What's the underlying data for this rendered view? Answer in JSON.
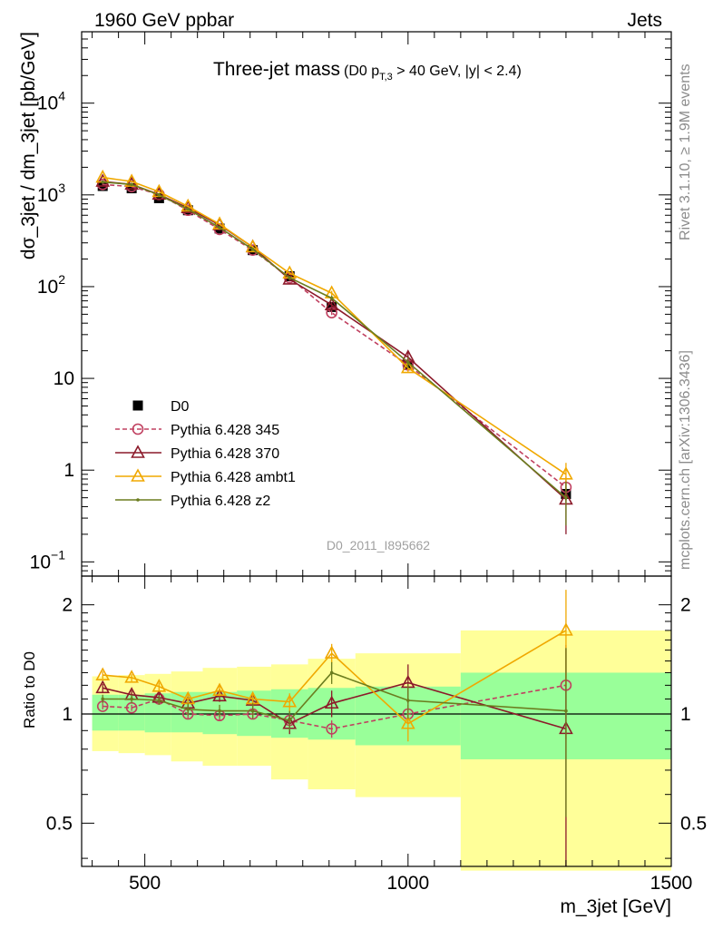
{
  "header": {
    "left": "1960 GeV ppbar",
    "right": "Jets"
  },
  "side_labels": {
    "rivet": "Rivet 3.1.10, ≥ 1.9M events",
    "mcplots": "mcplots.cern.ch [arXiv:1306.3436]"
  },
  "chart_data": [
    {
      "type": "line",
      "title": "Three-jet mass",
      "title_note": {
        "prefix": "(D0 p",
        "subscript": "T,3",
        "suffix": " > 40 GeV, |y| < 2.4)"
      },
      "analysis_id": "D0_2011_I895662",
      "ylabel": "dσ_3jet / dm_3jet [pb/GeV]",
      "yscale": "log",
      "ylim": [
        0.07,
        60000
      ],
      "xlim": [
        380,
        1500
      ],
      "y_ticks": [
        {
          "v": 0.1,
          "label": "10",
          "sup": "−1"
        },
        {
          "v": 1,
          "label": "1",
          "sup": ""
        },
        {
          "v": 10,
          "label": "10",
          "sup": ""
        },
        {
          "v": 100,
          "label": "10",
          "sup": "2"
        },
        {
          "v": 1000,
          "label": "10",
          "sup": "3"
        },
        {
          "v": 10000,
          "label": "10",
          "sup": "4"
        }
      ],
      "x": [
        420,
        475,
        527,
        582,
        642,
        705,
        775,
        855,
        1000,
        1300
      ],
      "series": [
        {
          "name": "D0",
          "color": "#000000",
          "marker": "square",
          "values": [
            1250,
            1180,
            920,
            680,
            430,
            250,
            130,
            60,
            14,
            0.55
          ],
          "err": [
            60,
            55,
            45,
            35,
            22,
            14,
            8,
            4,
            1.5,
            0.08
          ]
        },
        {
          "name": "Pythia 6.428 345",
          "color": "#c04060",
          "marker": "circle",
          "dash": true,
          "values": [
            1300,
            1230,
            1010,
            680,
            420,
            250,
            125,
            52,
            14,
            0.65
          ],
          "err": [
            20,
            20,
            18,
            12,
            10,
            7,
            5,
            3,
            1.2,
            0.2
          ]
        },
        {
          "name": "Pythia 6.428 370",
          "color": "#8c1a2a",
          "marker": "triangle",
          "values": [
            1400,
            1300,
            1010,
            720,
            470,
            270,
            120,
            63,
            17,
            0.48
          ],
          "err": [
            25,
            22,
            18,
            14,
            10,
            8,
            6,
            5,
            2.5,
            0.28
          ]
        },
        {
          "name": "Pythia 6.428 ambt1",
          "color": "#f0a800",
          "marker": "triangle",
          "values": [
            1550,
            1400,
            1080,
            750,
            480,
            270,
            140,
            85,
            13,
            0.9
          ],
          "err": [
            25,
            22,
            18,
            14,
            10,
            8,
            6,
            5,
            1.5,
            0.3
          ]
        },
        {
          "name": "Pythia 6.428 z2",
          "color": "#6b7d1f",
          "marker": "dot",
          "values": [
            1380,
            1300,
            1000,
            700,
            440,
            255,
            125,
            75,
            15,
            0.5
          ],
          "err": [
            25,
            22,
            18,
            14,
            10,
            8,
            6,
            5,
            2,
            0.25
          ]
        }
      ]
    },
    {
      "type": "line",
      "ylabel": "Ratio to D0",
      "xlabel": "m_3jet [GeV]",
      "yscale": "log",
      "ylim": [
        0.38,
        2.4
      ],
      "xlim": [
        380,
        1500
      ],
      "y_ticks": [
        {
          "v": 0.5,
          "label": "0.5"
        },
        {
          "v": 1,
          "label": "1"
        },
        {
          "v": 2,
          "label": "2"
        }
      ],
      "x_ticks": [
        {
          "v": 500,
          "label": "500"
        },
        {
          "v": 1000,
          "label": "1000"
        },
        {
          "v": 1500,
          "label": "1500"
        }
      ],
      "bands": {
        "edges": [
          400,
          450,
          500,
          550,
          610,
          675,
          740,
          810,
          900,
          1100,
          1500
        ],
        "inner": [
          [
            0.9,
            1.13
          ],
          [
            0.9,
            1.13
          ],
          [
            0.89,
            1.14
          ],
          [
            0.89,
            1.15
          ],
          [
            0.88,
            1.15
          ],
          [
            0.87,
            1.16
          ],
          [
            0.86,
            1.17
          ],
          [
            0.85,
            1.18
          ],
          [
            0.82,
            1.19
          ],
          [
            0.75,
            1.3
          ]
        ],
        "outer": [
          [
            0.79,
            1.27
          ],
          [
            0.78,
            1.28
          ],
          [
            0.77,
            1.29
          ],
          [
            0.74,
            1.31
          ],
          [
            0.72,
            1.34
          ],
          [
            0.72,
            1.35
          ],
          [
            0.66,
            1.37
          ],
          [
            0.62,
            1.42
          ],
          [
            0.59,
            1.47
          ],
          [
            0.37,
            1.7
          ]
        ]
      },
      "series": [
        {
          "name": "Pythia 6.428 345",
          "color": "#c04060",
          "marker": "circle",
          "dash": true,
          "values": [
            1.05,
            1.04,
            1.1,
            1.0,
            0.99,
            1.0,
            0.96,
            0.91,
            1.0,
            1.2
          ],
          "err": [
            0.02,
            0.02,
            0.02,
            0.03,
            0.03,
            0.03,
            0.04,
            0.05,
            0.06,
            0.35
          ]
        },
        {
          "name": "Pythia 6.428 370",
          "color": "#8c1a2a",
          "marker": "triangle",
          "values": [
            1.18,
            1.13,
            1.11,
            1.07,
            1.12,
            1.09,
            0.94,
            1.07,
            1.22,
            0.91
          ],
          "err": [
            0.03,
            0.03,
            0.03,
            0.04,
            0.04,
            0.05,
            0.06,
            0.09,
            0.15,
            0.6
          ]
        },
        {
          "name": "Pythia 6.428 ambt1",
          "color": "#f0a800",
          "marker": "triangle",
          "values": [
            1.28,
            1.26,
            1.19,
            1.1,
            1.16,
            1.1,
            1.08,
            1.47,
            0.94,
            1.7
          ],
          "err": [
            0.03,
            0.03,
            0.03,
            0.04,
            0.04,
            0.05,
            0.06,
            0.09,
            0.1,
            0.5
          ]
        },
        {
          "name": "Pythia 6.428 z2",
          "color": "#6b7d1f",
          "marker": "dot",
          "values": [
            1.1,
            1.1,
            1.09,
            1.03,
            1.02,
            1.02,
            0.96,
            1.3,
            1.09,
            1.02
          ],
          "err": [
            0.03,
            0.03,
            0.03,
            0.04,
            0.04,
            0.05,
            0.06,
            0.09,
            0.12,
            0.5
          ]
        }
      ]
    }
  ]
}
